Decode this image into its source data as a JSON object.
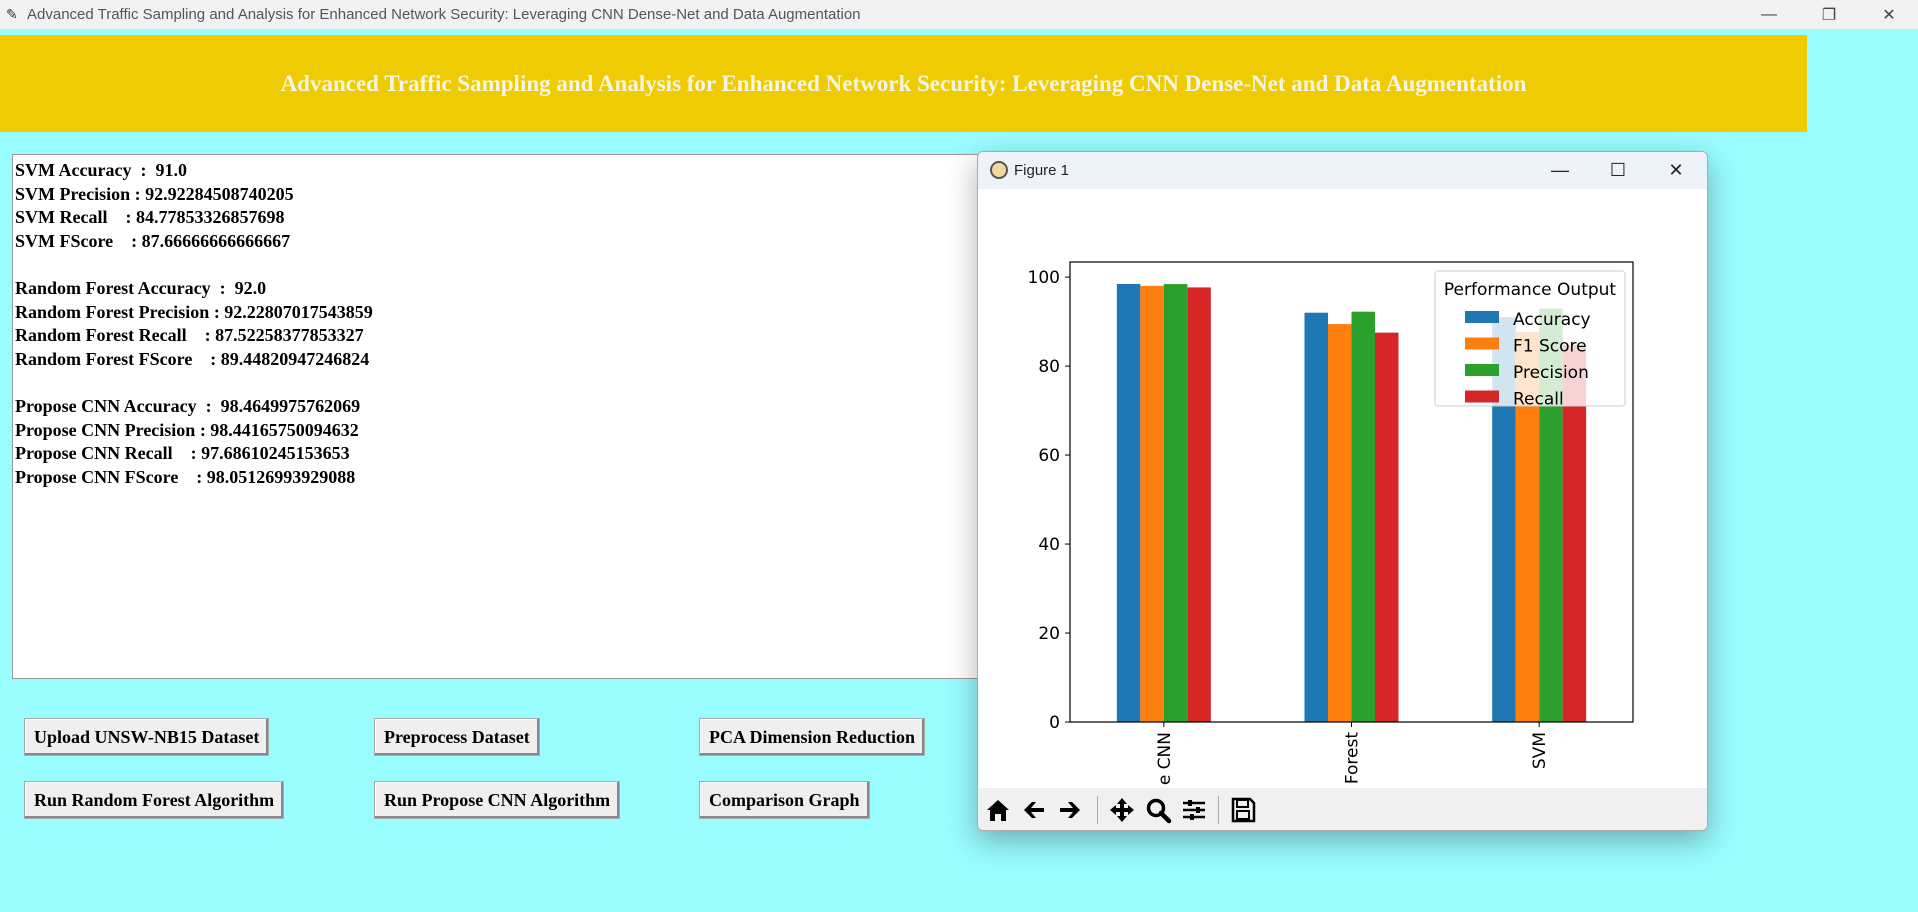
{
  "window": {
    "title": "Advanced Traffic Sampling and Analysis for Enhanced Network Security: Leveraging CNN Dense-Net and Data Augmentation",
    "controls": [
      "—",
      "❐",
      "✕"
    ]
  },
  "banner": {
    "title": "Advanced Traffic Sampling and Analysis for Enhanced Network Security: Leveraging CNN Dense-Net and Data Augmentation"
  },
  "output": {
    "lines": [
      "SVM Accuracy  :  91.0",
      "SVM Precision : 92.92284508740205",
      "SVM Recall    : 84.77853326857698",
      "SVM FScore    : 87.66666666666667",
      "",
      "Random Forest Accuracy  :  92.0",
      "Random Forest Precision : 92.22807017543859",
      "Random Forest Recall    : 87.52258377853327",
      "Random Forest FScore    : 89.44820947246824",
      "",
      "Propose CNN Accuracy  :  98.4649975762069",
      "Propose CNN Precision : 98.44165750094632",
      "Propose CNN Recall    : 97.68610245153653",
      "Propose CNN FScore    : 98.05126993929088"
    ]
  },
  "buttons": {
    "upload": "Upload UNSW-NB15 Dataset",
    "preprocess": "Preprocess Dataset",
    "pca": "PCA Dimension Reduction",
    "run_rf": "Run Random Forest Algorithm",
    "run_cnn": "Run Propose CNN Algorithm",
    "compare": "Comparison Graph"
  },
  "figure": {
    "title": "Figure 1",
    "controls": [
      "—",
      "☐",
      "✕"
    ],
    "toolbar": [
      "home-icon",
      "back-icon",
      "forward-icon",
      "pan-icon",
      "zoom-icon",
      "configure-icon",
      "save-icon"
    ]
  },
  "chart_data": {
    "type": "bar",
    "categories": [
      "Propose CNN",
      "Random Forest",
      "SVM"
    ],
    "visible_tick_labels": [
      "e CNN",
      "Forest",
      "SVM"
    ],
    "series": [
      {
        "name": "Accuracy",
        "color": "#1f77b4",
        "values": [
          98.46,
          92.0,
          91.0
        ]
      },
      {
        "name": "F1 Score",
        "color": "#ff7f0e",
        "values": [
          98.05,
          89.45,
          87.67
        ]
      },
      {
        "name": "Precision",
        "color": "#2ca02c",
        "values": [
          98.44,
          92.23,
          92.92
        ]
      },
      {
        "name": "Recall",
        "color": "#d62728",
        "values": [
          97.69,
          87.52,
          84.78
        ]
      }
    ],
    "yticks": [
      0,
      20,
      40,
      60,
      80,
      100
    ],
    "ylim": [
      0,
      103.4
    ],
    "legend_title": "Performance Output",
    "legend_position": "top-right"
  }
}
